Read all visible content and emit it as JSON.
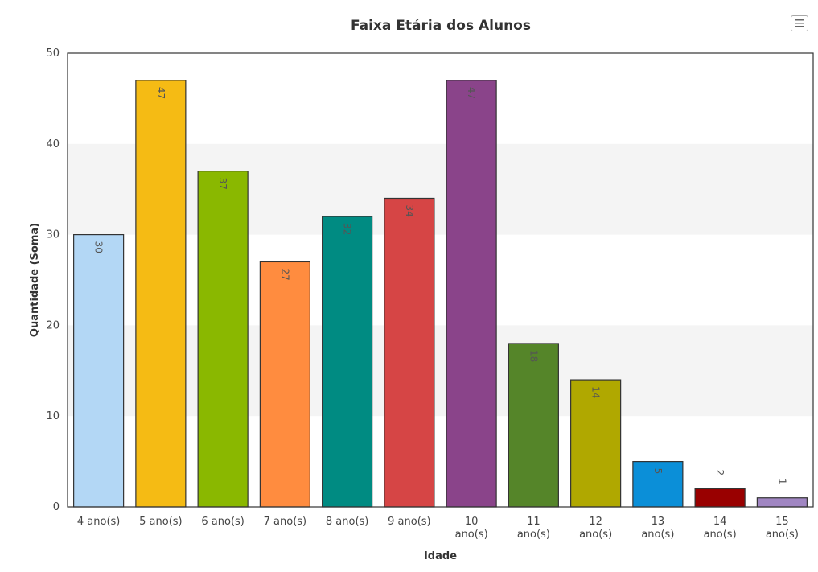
{
  "chart_data": {
    "type": "bar",
    "title": "Faixa Etária dos Alunos",
    "xlabel": "Idade",
    "ylabel": "Quantidade (Soma)",
    "ylim": [
      0,
      50
    ],
    "yticks": [
      0,
      10,
      20,
      30,
      40,
      50
    ],
    "grid": "alternating horizontal bands",
    "legend": "none",
    "categories": [
      [
        "4 ano(s)"
      ],
      [
        "5 ano(s)"
      ],
      [
        "6 ano(s)"
      ],
      [
        "7 ano(s)"
      ],
      [
        "8 ano(s)"
      ],
      [
        "9 ano(s)"
      ],
      [
        "10",
        "ano(s)"
      ],
      [
        "11",
        "ano(s)"
      ],
      [
        "12",
        "ano(s)"
      ],
      [
        "13",
        "ano(s)"
      ],
      [
        "14",
        "ano(s)"
      ],
      [
        "15",
        "ano(s)"
      ]
    ],
    "values": [
      30,
      47,
      37,
      27,
      32,
      34,
      47,
      18,
      14,
      5,
      2,
      1
    ],
    "colors": [
      "#b3d7f5",
      "#f5bb14",
      "#8ab800",
      "#ff8c3f",
      "#008b82",
      "#d64545",
      "#8a448a",
      "#558529",
      "#b0a800",
      "#0b8fd8",
      "#990000",
      "#a086c2"
    ]
  },
  "toolbar": {
    "menu_icon": "hamburger-menu-icon"
  }
}
